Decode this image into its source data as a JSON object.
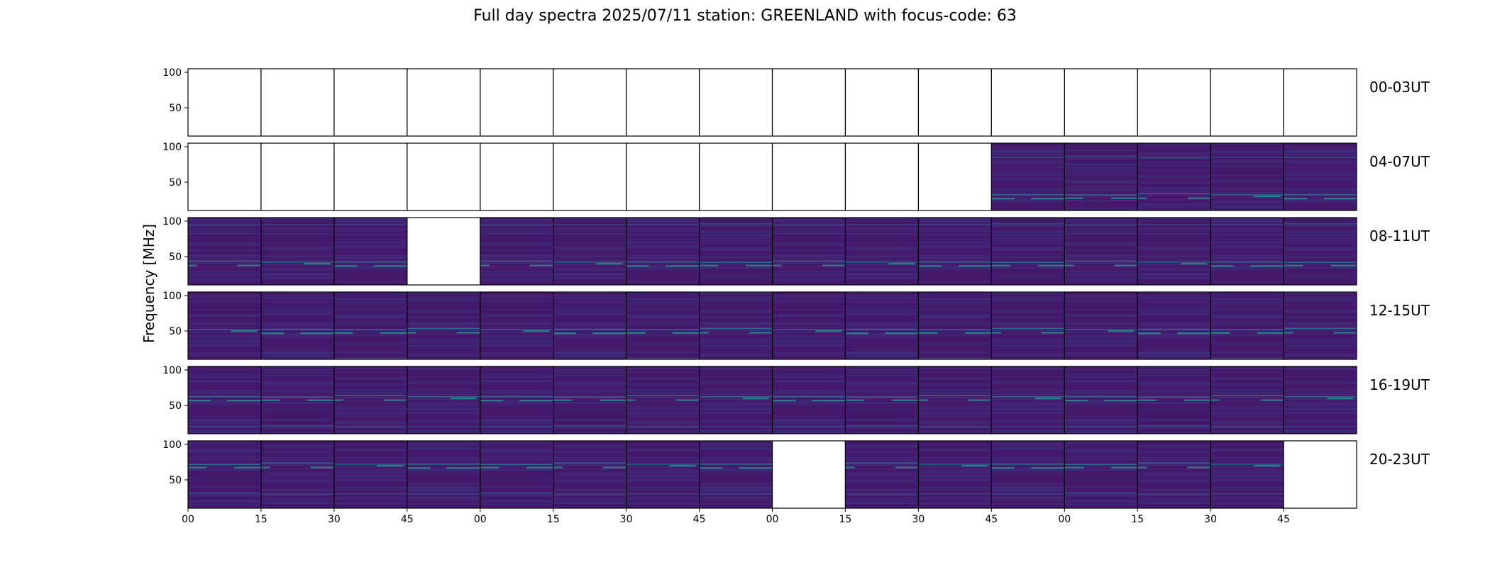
{
  "chart_data": {
    "type": "heatmap",
    "title": "Full day spectra 2025/07/11 station: GREENLAND with focus-code: 63",
    "ylabel": "Frequency [MHz]",
    "xlabel": "",
    "ylim": [
      10,
      105
    ],
    "yticks": [
      50,
      100
    ],
    "xtick_labels": [
      "00",
      "15",
      "30",
      "45",
      "00",
      "15",
      "30",
      "45",
      "00",
      "15",
      "30",
      "45",
      "00",
      "15",
      "30",
      "45"
    ],
    "grid": false,
    "colormap": "viridis",
    "panels": [
      {
        "label": "00-03UT",
        "data_available": [
          0,
          0,
          0,
          0,
          0,
          0,
          0,
          0,
          0,
          0,
          0,
          0,
          0,
          0,
          0,
          0
        ]
      },
      {
        "label": "04-07UT",
        "data_available": [
          0,
          0,
          0,
          0,
          0,
          0,
          0,
          0,
          0,
          0,
          0,
          1,
          1,
          1,
          1,
          1
        ]
      },
      {
        "label": "08-11UT",
        "data_available": [
          1,
          1,
          1,
          0,
          1,
          1,
          1,
          1,
          1,
          1,
          1,
          1,
          1,
          1,
          1,
          1
        ]
      },
      {
        "label": "12-15UT",
        "data_available": [
          1,
          1,
          1,
          1,
          1,
          1,
          1,
          1,
          1,
          1,
          1,
          1,
          1,
          1,
          1,
          1
        ]
      },
      {
        "label": "16-19UT",
        "data_available": [
          1,
          1,
          1,
          1,
          1,
          1,
          1,
          1,
          1,
          1,
          1,
          1,
          1,
          1,
          1,
          1
        ]
      },
      {
        "label": "20-23UT",
        "data_available": [
          1,
          1,
          1,
          1,
          1,
          1,
          1,
          1,
          0,
          1,
          1,
          1,
          1,
          1,
          1,
          0
        ]
      }
    ]
  }
}
